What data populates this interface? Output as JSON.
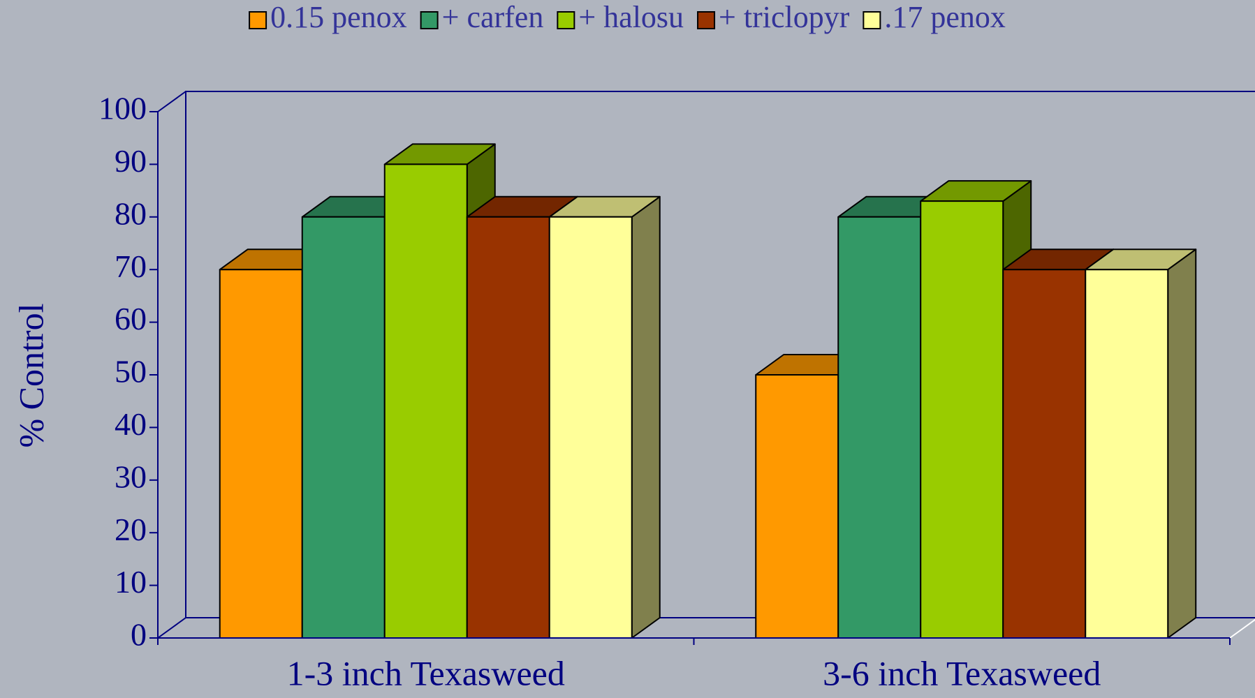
{
  "chart_data": {
    "type": "bar3d",
    "categories": [
      "1-3 inch Texasweed",
      "3-6 inch Texasweed"
    ],
    "y_label": "% Control",
    "series": [
      {
        "name": "0.15 penox",
        "color": "#ff9900",
        "values": [
          70,
          50
        ]
      },
      {
        "name": "+ carfen",
        "color": "#339966",
        "values": [
          80,
          80
        ]
      },
      {
        "name": "+ halosu",
        "color": "#99cc00",
        "values": [
          90,
          83
        ]
      },
      {
        "name": "+ triclopyr",
        "color": "#993300",
        "values": [
          80,
          70
        ]
      },
      {
        "name": ".17 penox",
        "color": "#ffff99",
        "values": [
          80,
          70
        ]
      }
    ],
    "ylim": [
      0,
      100
    ],
    "yticks": [
      0,
      10,
      20,
      30,
      40,
      50,
      60,
      70,
      80,
      90,
      100
    ],
    "legend": "top"
  }
}
